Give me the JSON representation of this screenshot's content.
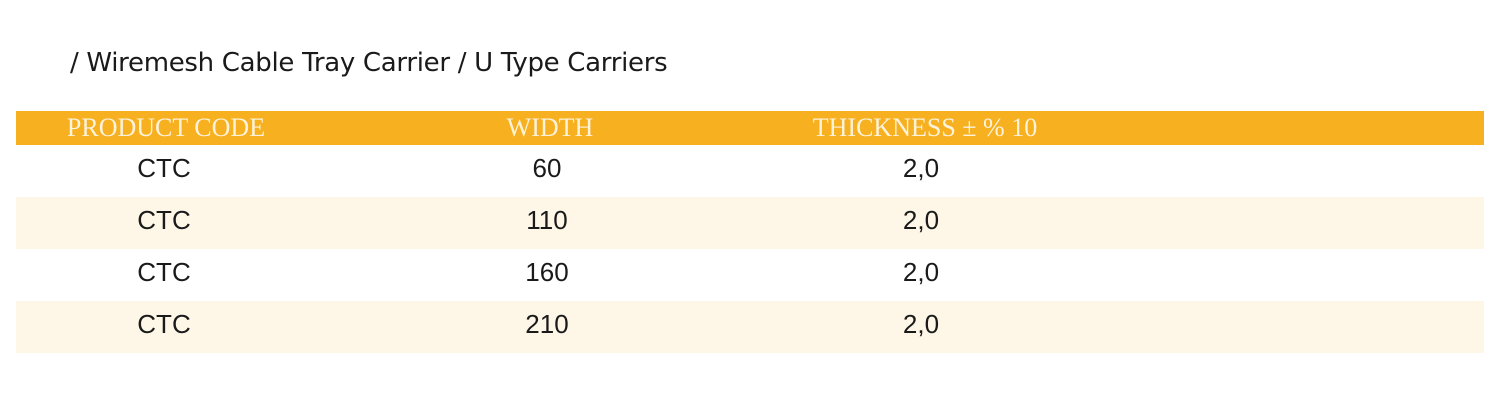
{
  "title": "/ Wiremesh Cable Tray Carrier / U Type Carriers",
  "table": {
    "header": [
      "PRODUCT CODE",
      "WIDTH",
      "THICKNESS ± % 10"
    ],
    "rows": [
      [
        "CTC",
        60,
        "2,0"
      ],
      [
        "CTC",
        110,
        "2,0"
      ],
      [
        "CTC",
        160,
        "2,0"
      ],
      [
        "CTC",
        210,
        "2,0"
      ]
    ]
  }
}
